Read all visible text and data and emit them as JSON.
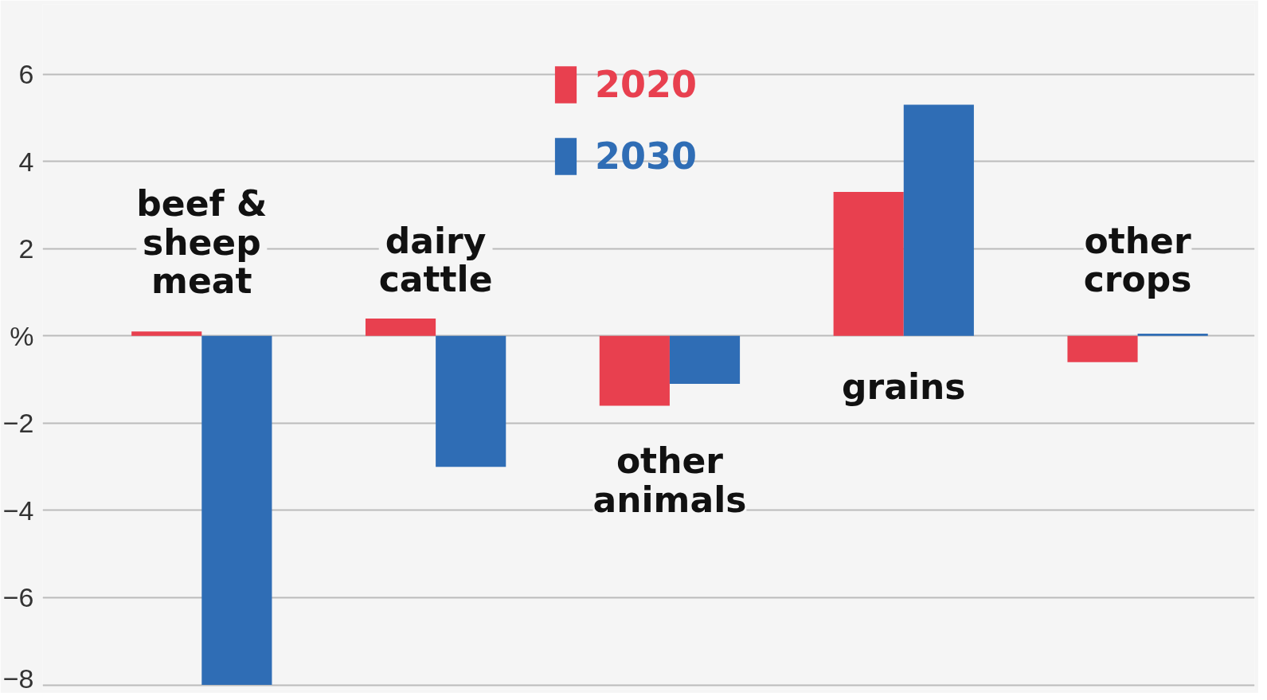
{
  "chart_data": {
    "type": "bar",
    "categories": [
      "beef & sheep meat",
      "dairy cattle",
      "other animals",
      "grains",
      "other crops"
    ],
    "series": [
      {
        "name": "2020",
        "color": "#e8404f",
        "values": [
          0.1,
          0.4,
          -1.6,
          3.3,
          -0.6
        ]
      },
      {
        "name": "2030",
        "color": "#2f6db5",
        "values": [
          -8.0,
          -3.0,
          -1.1,
          5.3,
          0.05
        ]
      }
    ],
    "ylim": [
      -8.1,
      7.6
    ],
    "yticks": [
      {
        "value": -8,
        "label": "−8"
      },
      {
        "value": -6,
        "label": "−6"
      },
      {
        "value": -4,
        "label": "−4"
      },
      {
        "value": -2,
        "label": "−2"
      },
      {
        "value": 0,
        "label": "%"
      },
      2,
      4,
      6
    ],
    "grid": "y",
    "legend": "top"
  }
}
